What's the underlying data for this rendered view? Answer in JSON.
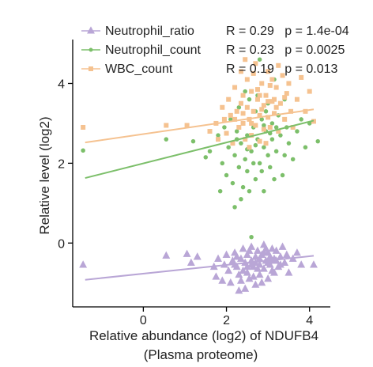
{
  "chart_data": {
    "type": "scatter",
    "xlabel": "Relative abundance (log2) of NDUFB4",
    "xlabel2": "(Plasma proteome)",
    "ylabel": "Relative level (log2)",
    "xlim": [
      -1.7,
      4.5
    ],
    "ylim": [
      -1.6,
      5.1
    ],
    "xticks": [
      0,
      2,
      4
    ],
    "yticks": [
      0,
      2,
      4
    ],
    "legend_position": "top",
    "series": [
      {
        "name": "Neutrophil_ratio",
        "stats": "R = 0.29   p = 1.4e-04",
        "color": "#b9a6d6",
        "marker": "triangle",
        "fit": [
          [
            -1.4,
            -0.92
          ],
          [
            4.1,
            -0.32
          ]
        ],
        "points": [
          [
            -1.45,
            -0.55
          ],
          [
            0.55,
            -0.32
          ],
          [
            1.05,
            -0.28
          ],
          [
            1.15,
            -0.5
          ],
          [
            1.3,
            -0.35
          ],
          [
            1.7,
            -0.6
          ],
          [
            1.75,
            -0.85
          ],
          [
            1.8,
            -0.4
          ],
          [
            1.9,
            -0.95
          ],
          [
            1.95,
            -0.55
          ],
          [
            2.0,
            -0.3
          ],
          [
            2.05,
            -0.7
          ],
          [
            2.1,
            -1.0
          ],
          [
            2.15,
            -0.45
          ],
          [
            2.2,
            -0.25
          ],
          [
            2.25,
            -0.6
          ],
          [
            2.3,
            -0.8
          ],
          [
            2.3,
            -1.2
          ],
          [
            2.35,
            -0.4
          ],
          [
            2.4,
            -0.15
          ],
          [
            2.45,
            -0.5
          ],
          [
            2.5,
            -0.75
          ],
          [
            2.5,
            -0.3
          ],
          [
            2.55,
            -0.9
          ],
          [
            2.6,
            -0.45
          ],
          [
            2.6,
            -0.1
          ],
          [
            2.65,
            -0.6
          ],
          [
            2.7,
            -0.35
          ],
          [
            2.7,
            -1.05
          ],
          [
            2.75,
            -0.2
          ],
          [
            2.8,
            -0.55
          ],
          [
            2.8,
            -0.8
          ],
          [
            2.85,
            -0.3
          ],
          [
            2.9,
            -0.65
          ],
          [
            2.9,
            -0.05
          ],
          [
            2.95,
            -0.45
          ],
          [
            3.0,
            -0.25
          ],
          [
            3.0,
            -0.9
          ],
          [
            3.05,
            -0.55
          ],
          [
            3.1,
            -0.15
          ],
          [
            3.1,
            -0.7
          ],
          [
            3.15,
            -0.4
          ],
          [
            3.2,
            -0.2
          ],
          [
            3.25,
            -0.6
          ],
          [
            3.3,
            -0.35
          ],
          [
            3.35,
            -0.1
          ],
          [
            3.4,
            -0.5
          ],
          [
            3.45,
            -0.3
          ],
          [
            3.5,
            -0.75
          ],
          [
            3.6,
            -0.4
          ],
          [
            3.7,
            -0.25
          ],
          [
            3.8,
            -0.55
          ],
          [
            4.1,
            -0.55
          ],
          [
            2.35,
            -0.95
          ],
          [
            2.45,
            -1.15
          ],
          [
            2.55,
            -0.2
          ],
          [
            2.65,
            -0.85
          ],
          [
            2.75,
            -0.65
          ],
          [
            2.85,
            -1.0
          ],
          [
            2.95,
            -0.15
          ],
          [
            3.05,
            -0.35
          ],
          [
            3.15,
            -0.75
          ],
          [
            2.2,
            -0.55
          ],
          [
            2.4,
            -0.7
          ],
          [
            2.6,
            -0.55
          ],
          [
            2.8,
            -0.4
          ],
          [
            3.0,
            -0.5
          ],
          [
            3.2,
            -0.45
          ],
          [
            2.25,
            -0.35
          ],
          [
            2.5,
            -0.6
          ],
          [
            2.7,
            -0.5
          ],
          [
            2.9,
            -0.25
          ],
          [
            3.1,
            -0.45
          ],
          [
            3.3,
            -0.55
          ]
        ]
      },
      {
        "name": "Neutrophil_count",
        "stats": "R = 0.23   p = 0.0025",
        "color": "#7cbf6a",
        "marker": "circle",
        "fit": [
          [
            -1.4,
            1.63
          ],
          [
            4.1,
            3.07
          ]
        ],
        "points": [
          [
            -1.45,
            2.32
          ],
          [
            0.55,
            2.6
          ],
          [
            1.2,
            2.55
          ],
          [
            1.5,
            2.15
          ],
          [
            1.6,
            2.3
          ],
          [
            1.8,
            2.7
          ],
          [
            1.85,
            1.3
          ],
          [
            1.9,
            2.0
          ],
          [
            1.95,
            2.9
          ],
          [
            2.0,
            1.7
          ],
          [
            2.05,
            2.4
          ],
          [
            2.1,
            3.1
          ],
          [
            2.15,
            1.5
          ],
          [
            2.2,
            2.2
          ],
          [
            2.2,
            0.9
          ],
          [
            2.25,
            2.8
          ],
          [
            2.3,
            1.9
          ],
          [
            2.3,
            3.4
          ],
          [
            2.35,
            2.5
          ],
          [
            2.4,
            1.4
          ],
          [
            2.4,
            3.0
          ],
          [
            2.45,
            2.1
          ],
          [
            2.5,
            2.7
          ],
          [
            2.5,
            1.8
          ],
          [
            2.55,
            3.6
          ],
          [
            2.6,
            2.3
          ],
          [
            2.6,
            0.15
          ],
          [
            2.65,
            2.9
          ],
          [
            2.7,
            1.6
          ],
          [
            2.7,
            3.3
          ],
          [
            2.75,
            2.6
          ],
          [
            2.8,
            2.0
          ],
          [
            2.8,
            4.6
          ],
          [
            2.85,
            3.1
          ],
          [
            2.9,
            2.4
          ],
          [
            2.9,
            1.3
          ],
          [
            2.95,
            2.8
          ],
          [
            3.0,
            3.5
          ],
          [
            3.0,
            2.2
          ],
          [
            3.05,
            1.9
          ],
          [
            3.1,
            3.0
          ],
          [
            3.1,
            2.6
          ],
          [
            3.15,
            4.1
          ],
          [
            3.2,
            2.3
          ],
          [
            3.25,
            3.2
          ],
          [
            3.3,
            2.7
          ],
          [
            3.35,
            1.7
          ],
          [
            3.4,
            3.6
          ],
          [
            3.45,
            2.9
          ],
          [
            3.5,
            2.5
          ],
          [
            3.55,
            3.3
          ],
          [
            3.6,
            2.1
          ],
          [
            3.7,
            2.8
          ],
          [
            3.8,
            3.1
          ],
          [
            3.9,
            2.4
          ],
          [
            4.0,
            3.0
          ],
          [
            4.2,
            2.55
          ],
          [
            2.35,
            1.1
          ],
          [
            2.45,
            3.8
          ],
          [
            2.55,
            1.3
          ],
          [
            2.65,
            2.0
          ],
          [
            2.75,
            3.7
          ],
          [
            2.85,
            1.8
          ],
          [
            2.95,
            3.3
          ],
          [
            3.05,
            2.75
          ],
          [
            3.15,
            1.6
          ],
          [
            2.25,
            2.6
          ],
          [
            2.5,
            2.35
          ],
          [
            2.7,
            2.45
          ],
          [
            2.9,
            2.95
          ],
          [
            3.2,
            2.9
          ],
          [
            3.4,
            2.2
          ]
        ]
      },
      {
        "name": "WBC_count",
        "stats": "R = 0.19   p = 0.013",
        "color": "#f5c290",
        "marker": "square",
        "fit": [
          [
            -1.4,
            2.52
          ],
          [
            4.1,
            3.35
          ]
        ],
        "points": [
          [
            -1.45,
            2.9
          ],
          [
            0.55,
            2.95
          ],
          [
            1.05,
            2.95
          ],
          [
            1.6,
            2.8
          ],
          [
            1.75,
            3.0
          ],
          [
            1.8,
            2.6
          ],
          [
            1.9,
            3.4
          ],
          [
            1.95,
            3.1
          ],
          [
            2.0,
            2.75
          ],
          [
            2.05,
            3.6
          ],
          [
            2.1,
            3.2
          ],
          [
            2.15,
            2.5
          ],
          [
            2.2,
            3.9
          ],
          [
            2.25,
            3.3
          ],
          [
            2.3,
            2.9
          ],
          [
            2.35,
            4.3
          ],
          [
            2.4,
            3.0
          ],
          [
            2.4,
            3.7
          ],
          [
            2.45,
            2.6
          ],
          [
            2.5,
            3.4
          ],
          [
            2.5,
            4.1
          ],
          [
            2.55,
            3.1
          ],
          [
            2.6,
            2.7
          ],
          [
            2.6,
            3.8
          ],
          [
            2.65,
            3.3
          ],
          [
            2.7,
            4.5
          ],
          [
            2.7,
            2.95
          ],
          [
            2.75,
            3.6
          ],
          [
            2.8,
            3.2
          ],
          [
            2.8,
            2.55
          ],
          [
            2.85,
            4.0
          ],
          [
            2.9,
            3.45
          ],
          [
            2.9,
            2.85
          ],
          [
            2.95,
            3.7
          ],
          [
            3.0,
            3.15
          ],
          [
            3.0,
            4.3
          ],
          [
            3.05,
            2.9
          ],
          [
            3.1,
            3.55
          ],
          [
            3.1,
            4.1
          ],
          [
            3.15,
            3.25
          ],
          [
            3.2,
            3.9
          ],
          [
            3.25,
            2.8
          ],
          [
            3.3,
            3.5
          ],
          [
            3.35,
            4.2
          ],
          [
            3.4,
            3.1
          ],
          [
            3.45,
            3.75
          ],
          [
            3.5,
            4.0
          ],
          [
            3.55,
            3.3
          ],
          [
            3.6,
            2.9
          ],
          [
            3.7,
            3.6
          ],
          [
            3.8,
            4.15
          ],
          [
            3.9,
            3.3
          ],
          [
            4.0,
            3.8
          ],
          [
            4.1,
            3.05
          ],
          [
            2.35,
            3.5
          ],
          [
            2.45,
            4.6
          ],
          [
            2.55,
            2.4
          ],
          [
            2.65,
            4.25
          ],
          [
            2.75,
            3.85
          ],
          [
            2.85,
            3.35
          ],
          [
            2.95,
            2.5
          ],
          [
            3.05,
            3.95
          ],
          [
            3.15,
            3.6
          ],
          [
            3.25,
            4.45
          ],
          [
            2.2,
            3.1
          ],
          [
            2.4,
            3.25
          ],
          [
            2.6,
            3.0
          ],
          [
            2.8,
            3.7
          ],
          [
            3.0,
            3.55
          ],
          [
            3.2,
            3.4
          ],
          [
            3.4,
            3.65
          ]
        ]
      }
    ]
  }
}
